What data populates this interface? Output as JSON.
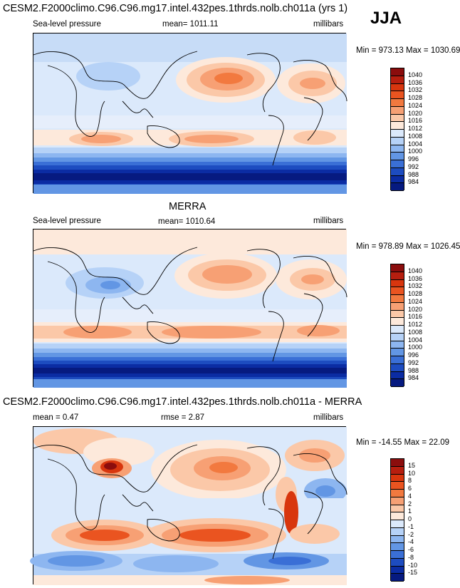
{
  "figure": {
    "season": "JJA"
  },
  "panels": [
    {
      "title": "CESM2.F2000climo.C96.C96.mg17.intel.432pes.1thrds.nolb.ch011a (yrs 1)",
      "left_label": "Sea-level pressure",
      "mean_label": "mean= 1011.11",
      "units": "millibars",
      "minmax": "Min = 973.13 Max = 1030.69",
      "colorbar_ticks": [
        "1040",
        "1036",
        "1032",
        "1028",
        "1024",
        "1020",
        "1016",
        "1012",
        "1008",
        "1004",
        "1000",
        "996",
        "992",
        "988",
        "984"
      ],
      "colorbar_colors": [
        "#8b0d0d",
        "#b61e0f",
        "#d8360e",
        "#ea5420",
        "#f2793f",
        "#f7a074",
        "#fbc8a8",
        "#fde9db",
        "#dbe9fb",
        "#b6d2f7",
        "#8db6f0",
        "#6296e4",
        "#3a6fd6",
        "#1d4cc0",
        "#0b2ca3",
        "#061a80"
      ]
    },
    {
      "title": "MERRA",
      "left_label": "Sea-level pressure",
      "mean_label": "mean= 1010.64",
      "units": "millibars",
      "minmax": "Min = 978.89 Max = 1026.45",
      "colorbar_ticks": [
        "1040",
        "1036",
        "1032",
        "1028",
        "1024",
        "1020",
        "1016",
        "1012",
        "1008",
        "1004",
        "1000",
        "996",
        "992",
        "988",
        "984"
      ],
      "colorbar_colors": [
        "#8b0d0d",
        "#b61e0f",
        "#d8360e",
        "#ea5420",
        "#f2793f",
        "#f7a074",
        "#fbc8a8",
        "#fde9db",
        "#dbe9fb",
        "#b6d2f7",
        "#8db6f0",
        "#6296e4",
        "#3a6fd6",
        "#1d4cc0",
        "#0b2ca3",
        "#061a80"
      ]
    },
    {
      "title": "CESM2.F2000climo.C96.C96.mg17.intel.432pes.1thrds.nolb.ch011a - MERRA",
      "mean_label": "mean =   0.47",
      "rmse_label": "rmse =   2.87",
      "units": "millibars",
      "minmax": "Min = -14.55 Max =  22.09",
      "colorbar_ticks": [
        "15",
        "10",
        "8",
        "6",
        "4",
        "2",
        "1",
        "0",
        "-1",
        "-2",
        "-4",
        "-6",
        "-8",
        "-10",
        "-15"
      ],
      "colorbar_colors": [
        "#8b0d0d",
        "#b61e0f",
        "#d8360e",
        "#ea5420",
        "#f2793f",
        "#f7a074",
        "#fbc8a8",
        "#fde9db",
        "#dbe9fb",
        "#b6d2f7",
        "#8db6f0",
        "#6296e4",
        "#3a6fd6",
        "#1d4cc0",
        "#0b2ca3",
        "#061a80"
      ]
    }
  ]
}
